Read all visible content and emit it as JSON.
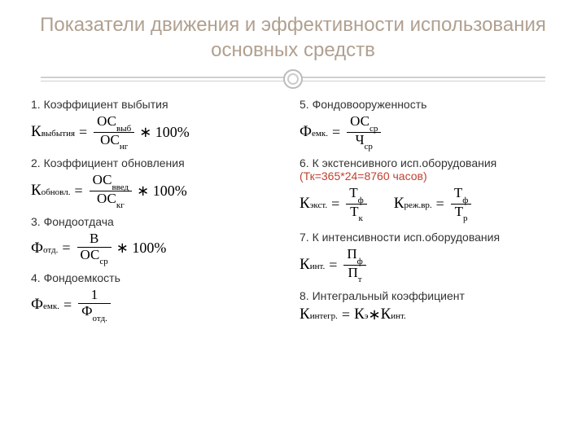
{
  "title": "Показатели движения и эффективности использования основных средств",
  "left": [
    {
      "title": "1. Коэффициент выбытия",
      "formula": {
        "lhs_sym": "К",
        "lhs_sub": "выбытия",
        "num_sym": "ОС",
        "num_sub": "выб",
        "den_sym": "ОС",
        "den_sub": "нг",
        "suffix": " ∗ 100%"
      }
    },
    {
      "title": "2. Коэффициент обновления",
      "formula": {
        "lhs_sym": "К",
        "lhs_sub": "обновл.",
        "num_sym": "ОС",
        "num_sub": "введ",
        "den_sym": "ОС",
        "den_sub": "кг",
        "suffix": " ∗ 100%"
      }
    },
    {
      "title": "3. Фондоотдача",
      "formula": {
        "lhs_sym": "Ф",
        "lhs_sub": "отд.",
        "num_sym": "В",
        "num_sub": "",
        "den_sym": "ОС",
        "den_sub": "ср",
        "suffix": " ∗ 100%"
      }
    },
    {
      "title": "4. Фондоемкость",
      "formula": {
        "lhs_sym": "Ф",
        "lhs_sub": "емк.",
        "num_sym": "1",
        "num_sub": "",
        "den_sym": "Ф",
        "den_sub": "отд.",
        "suffix": ""
      }
    }
  ],
  "right": [
    {
      "title": "5. Фондовооруженность",
      "formula": {
        "lhs_sym": "Ф",
        "lhs_sub": "емк.",
        "num_sym": "ОС",
        "num_sub": "ср",
        "den_sym": "Ч",
        "den_sub": "ср",
        "suffix": ""
      }
    },
    {
      "title": "6. К экстенсивного исп.оборудования",
      "red_note": "(Тк=365*24=8760 часов)",
      "formulas": [
        {
          "lhs_sym": "К",
          "lhs_sub": "экст.",
          "num_sym": "Т",
          "num_sub": "ф",
          "den_sym": "Т",
          "den_sub": "к",
          "suffix": ""
        },
        {
          "lhs_sym": "К",
          "lhs_sub": "реж.вр.",
          "num_sym": "Т",
          "num_sub": "ф",
          "den_sym": "Т",
          "den_sub": "р",
          "suffix": ""
        }
      ]
    },
    {
      "title": "7. К интенсивности исп.оборудования",
      "formula": {
        "lhs_sym": "К",
        "lhs_sub": "инт.",
        "num_sym": "П",
        "num_sub": "ф",
        "den_sym": "П",
        "den_sub": "т",
        "suffix": ""
      }
    },
    {
      "title": "8. Интегральный коэффициент",
      "plain_formula": {
        "lhs_sym": "К",
        "lhs_sub": "интегр.",
        "r1_sym": "К",
        "r1_sub": "э",
        "op": " ∗ ",
        "r2_sym": "К",
        "r2_sub": "инт."
      }
    }
  ],
  "colors": {
    "title_color": "#b0a090",
    "text_color": "#333333",
    "red": "#c04030",
    "formula_color": "#000000",
    "divider": "#d0d0d0"
  }
}
